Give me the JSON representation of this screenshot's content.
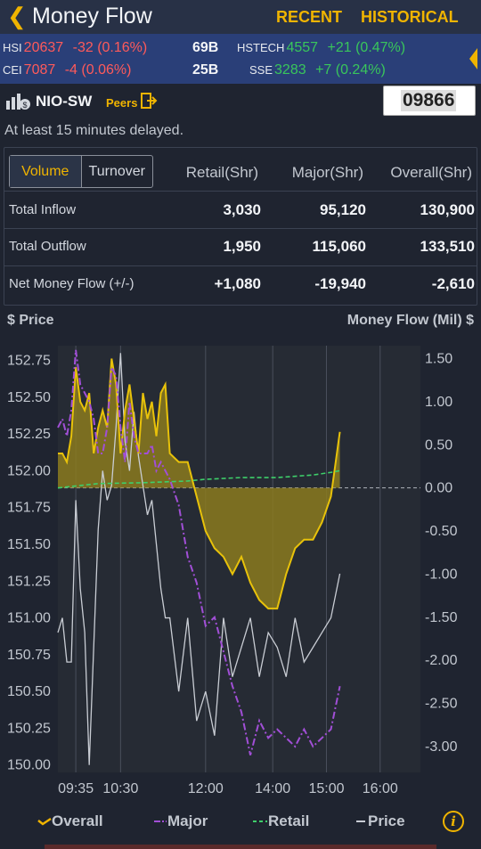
{
  "header": {
    "back_icon": "chevron-left-icon",
    "title": "Money Flow",
    "recent": "RECENT",
    "historical": "HISTORICAL"
  },
  "ticker": {
    "hsi": {
      "name": "HSI",
      "value": "20637",
      "change": "-32 (0.16%)",
      "turnover": "69B"
    },
    "hstech": {
      "name": "HSTECH",
      "value": "4557",
      "change": "+21 (0.47%)"
    },
    "cei": {
      "name": "CEI",
      "value": "7087",
      "change": "-4 (0.06%)",
      "turnover": "25B"
    },
    "sse": {
      "name": "SSE",
      "value": "3283",
      "change": "+7 (0.24%)"
    }
  },
  "stock": {
    "name": "NIO-SW",
    "peers": "Peers",
    "code": "09866",
    "delay_note": "At least 15 minutes delayed."
  },
  "table": {
    "tabs": [
      "Volume",
      "Turnover"
    ],
    "columns": [
      "Retail(Shr)",
      "Major(Shr)",
      "Overall(Shr)"
    ],
    "rows": [
      {
        "label": "Total Inflow",
        "values": [
          "3,030",
          "95,120",
          "130,900"
        ]
      },
      {
        "label": "Total Outflow",
        "values": [
          "1,950",
          "115,060",
          "133,510"
        ]
      },
      {
        "label": "Net Money Flow (+/-)",
        "values": [
          "+1,080",
          "-19,940",
          "-2,610"
        ]
      }
    ]
  },
  "chart_labels": {
    "left_axis": "$ Price",
    "right_axis": "Money Flow (Mil) $"
  },
  "legend": {
    "overall": "Overall",
    "major": "Major",
    "retail": "Retail",
    "price": "Price",
    "info_icon": "info-icon"
  },
  "colors": {
    "accent": "#f0b400",
    "overall_fill": "#8b7a1e",
    "major": "#a14fd6",
    "retail": "#3ecf6a",
    "price": "#c9cdd4"
  },
  "chart_data": {
    "type": "line",
    "x_ticks": [
      "09:35",
      "10:30",
      "12:00",
      "14:00",
      "15:00",
      "16:00"
    ],
    "y_left_ticks": [
      152.75,
      152.5,
      152.25,
      152.0,
      151.75,
      151.5,
      151.25,
      151.0,
      150.75,
      150.5,
      150.25,
      150.0
    ],
    "y_right_ticks": [
      "1.50",
      "1.00",
      "0.50",
      "0.00",
      "-0.50",
      "-1.00",
      "-1.50",
      "-2.00",
      "-2.50",
      "-3.00"
    ],
    "ylim_left": [
      149.95,
      152.85
    ],
    "ylim_right": [
      -3.3,
      1.65
    ],
    "xlim_minutes": [
      555,
      960
    ],
    "series": [
      {
        "name": "Overall",
        "axis": "right",
        "x": [
          555,
          560,
          565,
          570,
          575,
          580,
          585,
          590,
          595,
          600,
          605,
          610,
          615,
          620,
          625,
          630,
          635,
          640,
          645,
          650,
          655,
          660,
          665,
          670,
          675,
          680,
          690,
          700,
          710,
          720,
          730,
          740,
          750,
          760,
          770,
          780,
          790,
          800,
          810,
          820,
          830,
          840,
          850,
          860,
          870
        ],
        "y": [
          0.4,
          0.4,
          0.3,
          0.6,
          1.4,
          1.0,
          0.9,
          1.1,
          0.4,
          0.7,
          0.9,
          0.7,
          1.5,
          1.2,
          0.4,
          0.9,
          1.2,
          0.8,
          0.4,
          1.1,
          0.8,
          1.0,
          0.6,
          1.1,
          1.2,
          0.4,
          0.3,
          0.3,
          -0.1,
          -0.5,
          -0.7,
          -0.8,
          -1.0,
          -0.8,
          -1.1,
          -1.3,
          -1.4,
          -1.4,
          -1.0,
          -0.7,
          -0.6,
          -0.6,
          -0.4,
          -0.1,
          0.65
        ]
      },
      {
        "name": "Major",
        "axis": "right",
        "x": [
          555,
          560,
          565,
          570,
          575,
          580,
          585,
          590,
          595,
          600,
          605,
          610,
          615,
          620,
          625,
          630,
          635,
          640,
          645,
          650,
          655,
          660,
          665,
          670,
          675,
          680,
          690,
          700,
          710,
          720,
          730,
          740,
          750,
          760,
          770,
          780,
          790,
          800,
          810,
          820,
          830,
          840,
          850,
          860,
          870
        ],
        "y": [
          0.7,
          0.8,
          0.6,
          0.9,
          1.6,
          1.2,
          1.1,
          1.0,
          0.8,
          0.4,
          0.4,
          0.7,
          1.4,
          1.3,
          0.7,
          0.3,
          1.0,
          0.6,
          0.4,
          0.4,
          0.4,
          0.5,
          0.2,
          0.3,
          0.2,
          0.1,
          -0.2,
          -0.8,
          -1.1,
          -1.6,
          -1.5,
          -1.9,
          -2.3,
          -2.6,
          -3.1,
          -2.7,
          -2.9,
          -2.8,
          -2.9,
          -3.0,
          -2.8,
          -3.0,
          -2.9,
          -2.8,
          -2.3
        ]
      },
      {
        "name": "Retail",
        "axis": "right",
        "x": [
          555,
          600,
          650,
          700,
          720,
          760,
          800,
          840,
          860,
          870
        ],
        "y": [
          0.0,
          0.05,
          0.06,
          0.08,
          0.1,
          0.12,
          0.12,
          0.15,
          0.18,
          0.2
        ]
      },
      {
        "name": "Price",
        "axis": "left",
        "x": [
          555,
          560,
          565,
          570,
          575,
          580,
          585,
          590,
          595,
          600,
          605,
          610,
          615,
          620,
          625,
          630,
          635,
          640,
          645,
          650,
          655,
          660,
          665,
          670,
          675,
          680,
          690,
          700,
          710,
          720,
          730,
          740,
          750,
          760,
          770,
          780,
          790,
          800,
          810,
          820,
          830,
          840,
          850,
          860,
          870
        ],
        "y": [
          150.9,
          151.0,
          150.7,
          150.7,
          151.8,
          151.2,
          150.9,
          150.0,
          150.8,
          151.6,
          152.0,
          151.8,
          151.9,
          152.3,
          152.8,
          152.2,
          152.0,
          152.4,
          152.1,
          151.9,
          151.7,
          151.8,
          151.5,
          151.2,
          151.0,
          151.0,
          150.5,
          151.0,
          150.3,
          150.5,
          150.2,
          151.0,
          150.6,
          150.8,
          151.0,
          150.6,
          150.9,
          150.8,
          150.6,
          151.0,
          150.7,
          150.8,
          150.9,
          151.0,
          151.3
        ]
      }
    ]
  }
}
